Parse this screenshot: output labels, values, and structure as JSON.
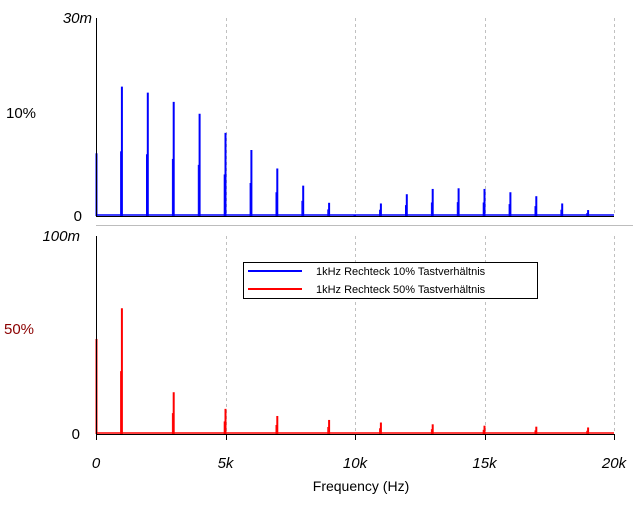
{
  "chart_data": [
    {
      "type": "line",
      "panel": "top",
      "series": [
        {
          "name": "1kHz Rechteck 10% Tastverhältnis",
          "color": "#0000ff",
          "x": [
            0,
            1000,
            2000,
            3000,
            4000,
            5000,
            6000,
            7000,
            8000,
            9000,
            10000,
            11000,
            12000,
            13000,
            14000,
            15000,
            16000,
            17000,
            18000,
            19000
          ],
          "values": [
            9.5,
            19.6,
            18.7,
            17.3,
            15.5,
            12.6,
            10.0,
            7.2,
            4.6,
            2.0,
            0.1,
            1.9,
            3.3,
            4.1,
            4.2,
            4.1,
            3.6,
            3.0,
            1.9,
            0.9
          ]
        }
      ],
      "ylim": [
        0,
        30
      ],
      "yticks": [
        "30m",
        "0"
      ],
      "series_label": "10%",
      "grid": "vertical dashed"
    },
    {
      "type": "line",
      "panel": "bottom",
      "series": [
        {
          "name": "1kHz Rechteck 50% Tastverhältnis",
          "color": "#ff0000",
          "x": [
            0,
            1000,
            3000,
            5000,
            7000,
            9000,
            11000,
            13000,
            15000,
            17000,
            19000
          ],
          "values": [
            48.0,
            63.5,
            21.1,
            12.7,
            9.1,
            7.1,
            5.8,
            4.9,
            4.2,
            3.7,
            3.3
          ]
        }
      ],
      "ylim": [
        0,
        100
      ],
      "yticks": [
        "100m",
        "0"
      ],
      "series_label": "50%",
      "grid": "vertical dashed"
    }
  ],
  "x_axis": {
    "label": "Frequency (Hz)",
    "min": 0,
    "max": 20000,
    "ticks": [
      {
        "value": 0,
        "label": "0"
      },
      {
        "value": 5000,
        "label": "5k"
      },
      {
        "value": 10000,
        "label": "10k"
      },
      {
        "value": 15000,
        "label": "15k"
      },
      {
        "value": 20000,
        "label": "20k"
      }
    ]
  },
  "legend": {
    "placement": "top-right of bottom panel",
    "entries": [
      {
        "label": "1kHz Rechteck 10% Tastverhältnis",
        "color": "#0000ff"
      },
      {
        "label": "1kHz Rechteck 50% Tastverhältnis",
        "color": "#ff0000"
      }
    ]
  },
  "colors": {
    "series_top": "#0000ff",
    "series_bottom": "#ff0000",
    "label_50": "#8b0000",
    "grid": "#c0c0c0"
  }
}
